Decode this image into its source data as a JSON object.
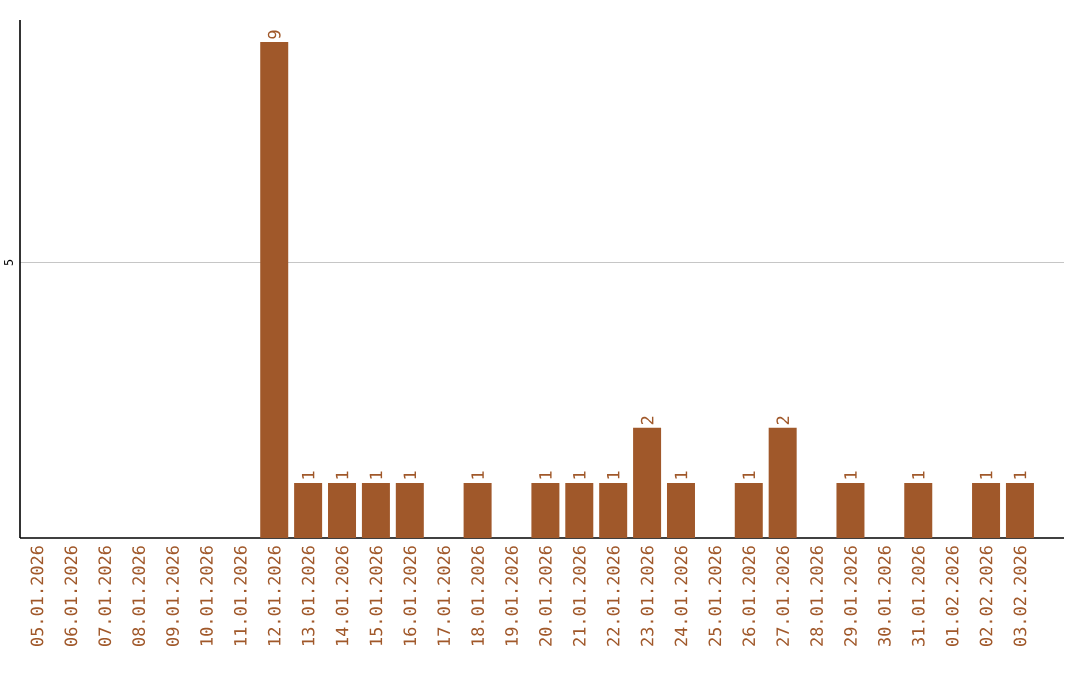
{
  "chart_data": {
    "type": "bar",
    "categories": [
      "05.01.2026",
      "06.01.2026",
      "07.01.2026",
      "08.01.2026",
      "09.01.2026",
      "10.01.2026",
      "11.01.2026",
      "12.01.2026",
      "13.01.2026",
      "14.01.2026",
      "15.01.2026",
      "16.01.2026",
      "17.01.2026",
      "18.01.2026",
      "19.01.2026",
      "20.01.2026",
      "21.01.2026",
      "22.01.2026",
      "23.01.2026",
      "24.01.2026",
      "25.01.2026",
      "26.01.2026",
      "27.01.2026",
      "28.01.2026",
      "29.01.2026",
      "30.01.2026",
      "31.01.2026",
      "01.02.2026",
      "02.02.2026",
      "03.02.2026"
    ],
    "values": [
      0,
      0,
      0,
      0,
      0,
      0,
      0,
      9,
      1,
      1,
      1,
      1,
      0,
      1,
      0,
      1,
      1,
      1,
      2,
      1,
      0,
      1,
      2,
      0,
      1,
      0,
      1,
      0,
      1,
      1
    ],
    "value_labels": [
      null,
      null,
      null,
      null,
      null,
      null,
      null,
      "9",
      "1",
      "1",
      "1",
      "1",
      null,
      "1",
      null,
      "1",
      "1",
      "1",
      "2",
      "1",
      null,
      "1",
      "2",
      null,
      "1",
      null,
      "1",
      null,
      "1",
      "1"
    ],
    "color": "#a0582a",
    "ylim": [
      0,
      9.4
    ],
    "yticks": [
      5
    ],
    "grid": "y"
  }
}
